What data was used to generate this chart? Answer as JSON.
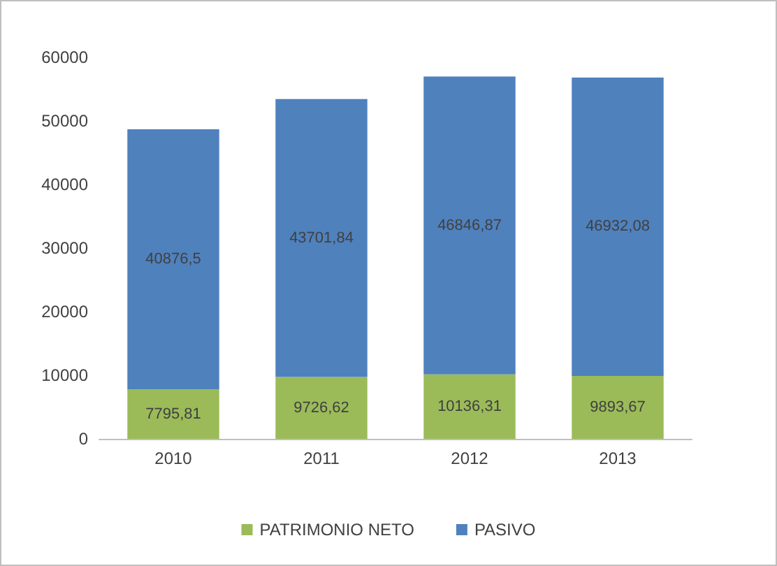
{
  "chart_data": {
    "type": "bar",
    "stacked": true,
    "categories": [
      "2010",
      "2011",
      "2012",
      "2013"
    ],
    "series": [
      {
        "name": "PATRIMONIO NETO",
        "color": "#9bbb59",
        "values": [
          7795.81,
          9726.62,
          10136.31,
          9893.67
        ],
        "value_labels": [
          "7795,81",
          "9726,62",
          "10136,31",
          "9893,67"
        ]
      },
      {
        "name": "PASIVO",
        "color": "#4f81bd",
        "values": [
          40876.5,
          43701.84,
          46846.87,
          46932.08
        ],
        "value_labels": [
          "40876,5",
          "43701,84",
          "46846,87",
          "46932,08"
        ]
      }
    ],
    "ylim": [
      0,
      60000
    ],
    "yticks": [
      0,
      10000,
      20000,
      30000,
      40000,
      50000,
      60000
    ],
    "grid": false,
    "legend": "bottom"
  }
}
